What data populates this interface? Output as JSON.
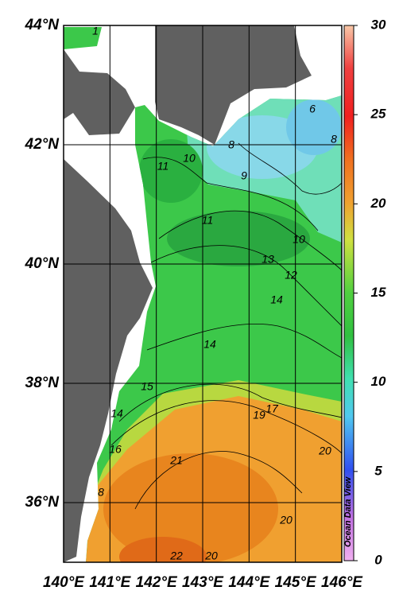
{
  "map": {
    "xlim": [
      140,
      146
    ],
    "ylim": [
      35,
      44
    ],
    "xticks": [
      {
        "value": 140,
        "label": "140°E"
      },
      {
        "value": 141,
        "label": "141°E"
      },
      {
        "value": 142,
        "label": "142°E"
      },
      {
        "value": 143,
        "label": "143°E"
      },
      {
        "value": 144,
        "label": "144°E"
      },
      {
        "value": 145,
        "label": "145°E"
      },
      {
        "value": 146,
        "label": "146°E"
      }
    ],
    "yticks": [
      {
        "value": 44,
        "label": "44°N"
      },
      {
        "value": 42,
        "label": "42°N"
      },
      {
        "value": 40,
        "label": "40°N"
      },
      {
        "value": 38,
        "label": "38°N"
      },
      {
        "value": 36,
        "label": "36°N"
      }
    ],
    "contour_labels": [
      1,
      6,
      8,
      8,
      10,
      11,
      9,
      11,
      10,
      13,
      12,
      14,
      14,
      15,
      17,
      19,
      14,
      16,
      20,
      21,
      8,
      20,
      22,
      20
    ],
    "colorbar": {
      "lim": [
        0,
        30
      ],
      "ticks": [
        0,
        5,
        10,
        15,
        20,
        25,
        30
      ]
    },
    "watermark": "Ocean Data View"
  }
}
